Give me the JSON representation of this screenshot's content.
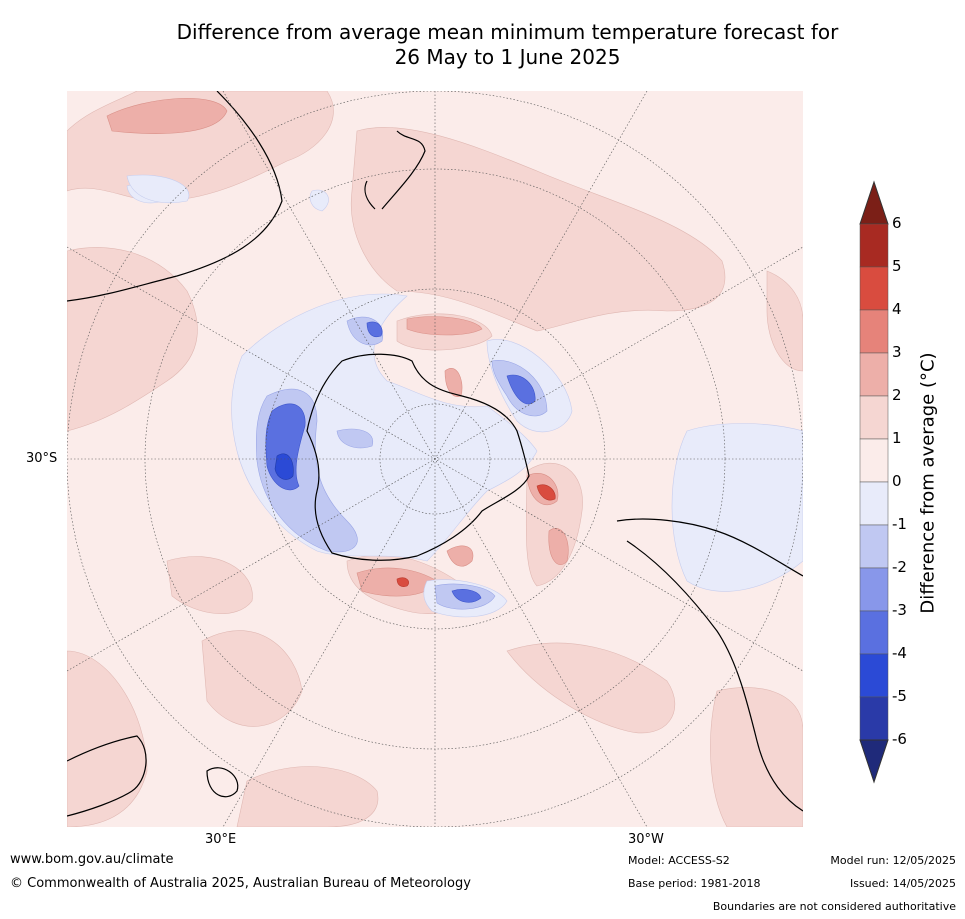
{
  "title_line1": "Difference from average mean minimum temperature forecast for",
  "title_line2": "26 May to 1 June 2025",
  "coord_labels": {
    "lat30s": "30°S",
    "lon30e": "30°E",
    "lon30w": "30°W"
  },
  "colorbar": {
    "title": "Difference from average (°C)",
    "ticks": [
      "6",
      "5",
      "4",
      "3",
      "2",
      "1",
      "0",
      "-1",
      "-2",
      "-3",
      "-4",
      "-5",
      "-6"
    ],
    "colors": [
      "#7b1f17",
      "#a82a22",
      "#d94c3f",
      "#e6837a",
      "#edafa9",
      "#f5d6d2",
      "#fbecea",
      "#e8ebfa",
      "#c0c8f2",
      "#8897ea",
      "#5a70e0",
      "#2b4ad6",
      "#2a3aa8",
      "#1f2a7a"
    ]
  },
  "footer": {
    "website": "www.bom.gov.au/climate",
    "copyright": "© Commonwealth of Australia 2025, Australian Bureau of Meteorology",
    "model": "Model: ACCESS-S2",
    "base_period": "Base period: 1981-2018",
    "model_run": "Model run: 12/05/2025",
    "issued": "Issued: 14/05/2025",
    "disclaimer": "Boundaries are not considered authoritative"
  }
}
